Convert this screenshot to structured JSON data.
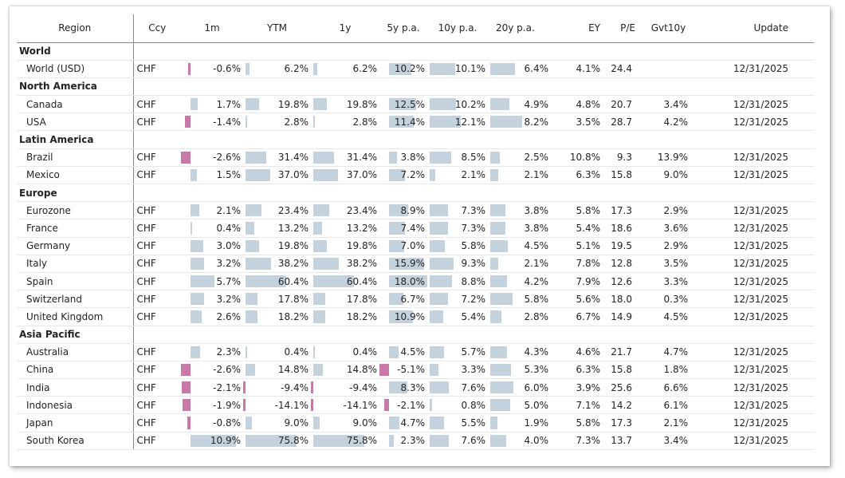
{
  "columns": {
    "region": "Region",
    "ccy": "Ccy",
    "m1": "1m",
    "ytm": "YTM",
    "y1": "1y",
    "y5": "5y p.a.",
    "y10": "10y p.a.",
    "y20": "20y p.a.",
    "ey": "EY",
    "pe": "P/E",
    "gvt": "Gvt10y",
    "update": "Update"
  },
  "colors": {
    "positive_bar": "#c4d2dd",
    "negative_bar": "#c879a7",
    "accent_line": "#b0739a"
  },
  "rows": [
    {
      "type": "group",
      "region": "World"
    },
    {
      "type": "entry",
      "region": "World (USD)",
      "ccy": "CHF",
      "m1": {
        "v": -0.6,
        "t": "-0.6%"
      },
      "ytm": {
        "v": 6.2,
        "t": "6.2%"
      },
      "y1": {
        "v": 6.2,
        "t": "6.2%"
      },
      "y5": {
        "v": 10.2,
        "t": "10.2%"
      },
      "y10": {
        "v": 10.1,
        "t": "10.1%"
      },
      "y20": {
        "v": 6.4,
        "t": "6.4%"
      },
      "ey": "4.1%",
      "pe": "24.4",
      "gvt": "",
      "update": "12/31/2025"
    },
    {
      "type": "group",
      "region": "North America"
    },
    {
      "type": "entry",
      "region": "Canada",
      "ccy": "CHF",
      "m1": {
        "v": 1.7,
        "t": "1.7%"
      },
      "ytm": {
        "v": 19.8,
        "t": "19.8%"
      },
      "y1": {
        "v": 19.8,
        "t": "19.8%"
      },
      "y5": {
        "v": 12.5,
        "t": "12.5%"
      },
      "y10": {
        "v": 10.2,
        "t": "10.2%"
      },
      "y20": {
        "v": 4.9,
        "t": "4.9%"
      },
      "ey": "4.8%",
      "pe": "20.7",
      "gvt": "3.4%",
      "update": "12/31/2025"
    },
    {
      "type": "entry",
      "region": "USA",
      "ccy": "CHF",
      "m1": {
        "v": -1.4,
        "t": "-1.4%"
      },
      "ytm": {
        "v": 2.8,
        "t": "2.8%"
      },
      "y1": {
        "v": 2.8,
        "t": "2.8%"
      },
      "y5": {
        "v": 11.4,
        "t": "11.4%"
      },
      "y10": {
        "v": 12.1,
        "t": "12.1%"
      },
      "y20": {
        "v": 8.2,
        "t": "8.2%"
      },
      "ey": "3.5%",
      "pe": "28.7",
      "gvt": "4.2%",
      "update": "12/31/2025"
    },
    {
      "type": "group",
      "region": "Latin America"
    },
    {
      "type": "entry",
      "region": "Brazil",
      "ccy": "CHF",
      "m1": {
        "v": -2.6,
        "t": "-2.6%"
      },
      "ytm": {
        "v": 31.4,
        "t": "31.4%"
      },
      "y1": {
        "v": 31.4,
        "t": "31.4%"
      },
      "y5": {
        "v": 3.8,
        "t": "3.8%"
      },
      "y10": {
        "v": 8.5,
        "t": "8.5%"
      },
      "y20": {
        "v": 2.5,
        "t": "2.5%"
      },
      "ey": "10.8%",
      "pe": "9.3",
      "gvt": "13.9%",
      "update": "12/31/2025"
    },
    {
      "type": "entry",
      "region": "Mexico",
      "ccy": "CHF",
      "m1": {
        "v": 1.5,
        "t": "1.5%"
      },
      "ytm": {
        "v": 37.0,
        "t": "37.0%"
      },
      "y1": {
        "v": 37.0,
        "t": "37.0%"
      },
      "y5": {
        "v": 7.2,
        "t": "7.2%"
      },
      "y10": {
        "v": 2.1,
        "t": "2.1%"
      },
      "y20": {
        "v": 2.1,
        "t": "2.1%"
      },
      "ey": "6.3%",
      "pe": "15.8",
      "gvt": "9.0%",
      "update": "12/31/2025"
    },
    {
      "type": "group",
      "region": "Europe"
    },
    {
      "type": "entry",
      "region": "Eurozone",
      "ccy": "CHF",
      "m1": {
        "v": 2.1,
        "t": "2.1%"
      },
      "ytm": {
        "v": 23.4,
        "t": "23.4%"
      },
      "y1": {
        "v": 23.4,
        "t": "23.4%"
      },
      "y5": {
        "v": 8.9,
        "t": "8.9%"
      },
      "y10": {
        "v": 7.3,
        "t": "7.3%"
      },
      "y20": {
        "v": 3.8,
        "t": "3.8%"
      },
      "ey": "5.8%",
      "pe": "17.3",
      "gvt": "2.9%",
      "update": "12/31/2025"
    },
    {
      "type": "entry",
      "region": "France",
      "ccy": "CHF",
      "m1": {
        "v": 0.4,
        "t": "0.4%"
      },
      "ytm": {
        "v": 13.2,
        "t": "13.2%"
      },
      "y1": {
        "v": 13.2,
        "t": "13.2%"
      },
      "y5": {
        "v": 7.4,
        "t": "7.4%"
      },
      "y10": {
        "v": 7.3,
        "t": "7.3%"
      },
      "y20": {
        "v": 3.8,
        "t": "3.8%"
      },
      "ey": "5.4%",
      "pe": "18.6",
      "gvt": "3.6%",
      "update": "12/31/2025"
    },
    {
      "type": "entry",
      "region": "Germany",
      "ccy": "CHF",
      "m1": {
        "v": 3.0,
        "t": "3.0%"
      },
      "ytm": {
        "v": 19.8,
        "t": "19.8%"
      },
      "y1": {
        "v": 19.8,
        "t": "19.8%"
      },
      "y5": {
        "v": 7.0,
        "t": "7.0%"
      },
      "y10": {
        "v": 5.8,
        "t": "5.8%"
      },
      "y20": {
        "v": 4.5,
        "t": "4.5%"
      },
      "ey": "5.1%",
      "pe": "19.5",
      "gvt": "2.9%",
      "update": "12/31/2025"
    },
    {
      "type": "entry",
      "region": "Italy",
      "ccy": "CHF",
      "m1": {
        "v": 3.2,
        "t": "3.2%"
      },
      "ytm": {
        "v": 38.2,
        "t": "38.2%"
      },
      "y1": {
        "v": 38.2,
        "t": "38.2%"
      },
      "y5": {
        "v": 15.9,
        "t": "15.9%"
      },
      "y10": {
        "v": 9.3,
        "t": "9.3%"
      },
      "y20": {
        "v": 2.1,
        "t": "2.1%"
      },
      "ey": "7.8%",
      "pe": "12.8",
      "gvt": "3.5%",
      "update": "12/31/2025"
    },
    {
      "type": "entry",
      "region": "Spain",
      "ccy": "CHF",
      "m1": {
        "v": 5.7,
        "t": "5.7%"
      },
      "ytm": {
        "v": 60.4,
        "t": "60.4%"
      },
      "y1": {
        "v": 60.4,
        "t": "60.4%"
      },
      "y5": {
        "v": 18.0,
        "t": "18.0%"
      },
      "y10": {
        "v": 8.8,
        "t": "8.8%"
      },
      "y20": {
        "v": 4.2,
        "t": "4.2%"
      },
      "ey": "7.9%",
      "pe": "12.6",
      "gvt": "3.3%",
      "update": "12/31/2025"
    },
    {
      "type": "entry",
      "region": "Switzerland",
      "ccy": "CHF",
      "m1": {
        "v": 3.2,
        "t": "3.2%"
      },
      "ytm": {
        "v": 17.8,
        "t": "17.8%"
      },
      "y1": {
        "v": 17.8,
        "t": "17.8%"
      },
      "y5": {
        "v": 6.7,
        "t": "6.7%"
      },
      "y10": {
        "v": 7.2,
        "t": "7.2%"
      },
      "y20": {
        "v": 5.8,
        "t": "5.8%"
      },
      "ey": "5.6%",
      "pe": "18.0",
      "gvt": "0.3%",
      "update": "12/31/2025"
    },
    {
      "type": "entry",
      "region": "United Kingdom",
      "ccy": "CHF",
      "m1": {
        "v": 2.6,
        "t": "2.6%"
      },
      "ytm": {
        "v": 18.2,
        "t": "18.2%"
      },
      "y1": {
        "v": 18.2,
        "t": "18.2%"
      },
      "y5": {
        "v": 10.9,
        "t": "10.9%"
      },
      "y10": {
        "v": 5.4,
        "t": "5.4%"
      },
      "y20": {
        "v": 2.8,
        "t": "2.8%"
      },
      "ey": "6.7%",
      "pe": "14.9",
      "gvt": "4.5%",
      "update": "12/31/2025"
    },
    {
      "type": "group",
      "region": "Asia Pacific"
    },
    {
      "type": "entry",
      "region": "Australia",
      "ccy": "CHF",
      "m1": {
        "v": 2.3,
        "t": "2.3%"
      },
      "ytm": {
        "v": 0.4,
        "t": "0.4%"
      },
      "y1": {
        "v": 0.4,
        "t": "0.4%"
      },
      "y5": {
        "v": 4.5,
        "t": "4.5%"
      },
      "y10": {
        "v": 5.7,
        "t": "5.7%"
      },
      "y20": {
        "v": 4.3,
        "t": "4.3%"
      },
      "ey": "4.6%",
      "pe": "21.7",
      "gvt": "4.7%",
      "update": "12/31/2025"
    },
    {
      "type": "entry",
      "region": "China",
      "ccy": "CHF",
      "m1": {
        "v": -2.6,
        "t": "-2.6%"
      },
      "ytm": {
        "v": 14.8,
        "t": "14.8%"
      },
      "y1": {
        "v": 14.8,
        "t": "14.8%"
      },
      "y5": {
        "v": -5.1,
        "t": "-5.1%"
      },
      "y10": {
        "v": 3.3,
        "t": "3.3%"
      },
      "y20": {
        "v": 5.3,
        "t": "5.3%"
      },
      "ey": "6.3%",
      "pe": "15.8",
      "gvt": "1.8%",
      "update": "12/31/2025"
    },
    {
      "type": "entry",
      "region": "India",
      "ccy": "CHF",
      "m1": {
        "v": -2.1,
        "t": "-2.1%"
      },
      "ytm": {
        "v": -9.4,
        "t": "-9.4%"
      },
      "y1": {
        "v": -9.4,
        "t": "-9.4%"
      },
      "y5": {
        "v": 8.3,
        "t": "8.3%"
      },
      "y10": {
        "v": 7.6,
        "t": "7.6%"
      },
      "y20": {
        "v": 6.0,
        "t": "6.0%"
      },
      "ey": "3.9%",
      "pe": "25.6",
      "gvt": "6.6%",
      "update": "12/31/2025"
    },
    {
      "type": "entry",
      "region": "Indonesia",
      "ccy": "CHF",
      "m1": {
        "v": -1.9,
        "t": "-1.9%"
      },
      "ytm": {
        "v": -14.1,
        "t": "-14.1%"
      },
      "y1": {
        "v": -14.1,
        "t": "-14.1%"
      },
      "y5": {
        "v": -2.1,
        "t": "-2.1%"
      },
      "y10": {
        "v": 0.8,
        "t": "0.8%"
      },
      "y20": {
        "v": 5.0,
        "t": "5.0%"
      },
      "ey": "7.1%",
      "pe": "14.2",
      "gvt": "6.1%",
      "update": "12/31/2025"
    },
    {
      "type": "entry",
      "region": "Japan",
      "ccy": "CHF",
      "m1": {
        "v": -0.8,
        "t": "-0.8%"
      },
      "ytm": {
        "v": 9.0,
        "t": "9.0%"
      },
      "y1": {
        "v": 9.0,
        "t": "9.0%"
      },
      "y5": {
        "v": 4.7,
        "t": "4.7%"
      },
      "y10": {
        "v": 5.5,
        "t": "5.5%"
      },
      "y20": {
        "v": 1.9,
        "t": "1.9%"
      },
      "ey": "5.8%",
      "pe": "17.3",
      "gvt": "2.1%",
      "update": "12/31/2025"
    },
    {
      "type": "entry",
      "region": "South Korea",
      "ccy": "CHF",
      "m1": {
        "v": 10.9,
        "t": "10.9%"
      },
      "ytm": {
        "v": 75.8,
        "t": "75.8%"
      },
      "y1": {
        "v": 75.8,
        "t": "75.8%"
      },
      "y5": {
        "v": 2.3,
        "t": "2.3%"
      },
      "y10": {
        "v": 7.6,
        "t": "7.6%"
      },
      "y20": {
        "v": 4.0,
        "t": "4.0%"
      },
      "ey": "7.3%",
      "pe": "13.7",
      "gvt": "3.4%",
      "update": "12/31/2025"
    }
  ]
}
